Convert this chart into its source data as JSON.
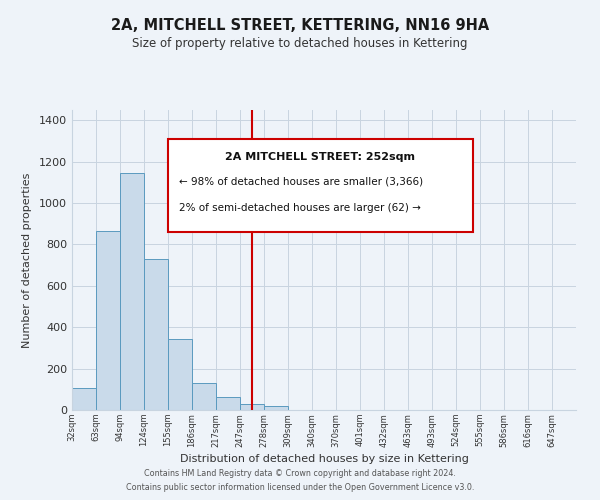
{
  "title": "2A, MITCHELL STREET, KETTERING, NN16 9HA",
  "subtitle": "Size of property relative to detached houses in Kettering",
  "xlabel": "Distribution of detached houses by size in Kettering",
  "ylabel": "Number of detached properties",
  "bin_labels": [
    "32sqm",
    "63sqm",
    "94sqm",
    "124sqm",
    "155sqm",
    "186sqm",
    "217sqm",
    "247sqm",
    "278sqm",
    "309sqm",
    "340sqm",
    "370sqm",
    "401sqm",
    "432sqm",
    "463sqm",
    "493sqm",
    "524sqm",
    "555sqm",
    "586sqm",
    "616sqm",
    "647sqm"
  ],
  "bar_values": [
    105,
    865,
    1145,
    730,
    345,
    130,
    62,
    30,
    20,
    0,
    0,
    0,
    0,
    0,
    0,
    0,
    0,
    0,
    0,
    0
  ],
  "bar_color": "#c9daea",
  "bar_edge_color": "#5a9abf",
  "vline_x": 7.5,
  "vline_color": "#cc0000",
  "ylim": [
    0,
    1450
  ],
  "yticks": [
    0,
    200,
    400,
    600,
    800,
    1000,
    1200,
    1400
  ],
  "annotation_title": "2A MITCHELL STREET: 252sqm",
  "annotation_line1": "← 98% of detached houses are smaller (3,366)",
  "annotation_line2": "2% of semi-detached houses are larger (62) →",
  "footer_line1": "Contains HM Land Registry data © Crown copyright and database right 2024.",
  "footer_line2": "Contains public sector information licensed under the Open Government Licence v3.0.",
  "background_color": "#eef3f9",
  "grid_color": "#c8d4e0"
}
